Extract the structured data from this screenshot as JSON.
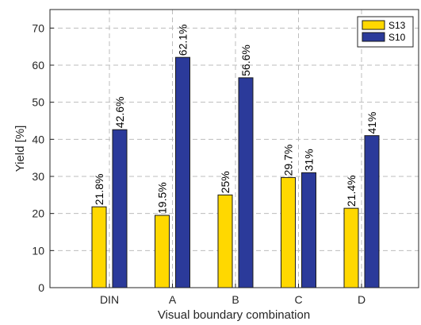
{
  "chart_data": {
    "type": "bar",
    "categories": [
      "DIN",
      "A",
      "B",
      "C",
      "D"
    ],
    "series": [
      {
        "name": "S13",
        "color": "#FFD800",
        "values": [
          21.8,
          19.5,
          25,
          29.7,
          21.4
        ],
        "labels": [
          "21.8%",
          "19.5%",
          "25%",
          "29.7%",
          "21.4%"
        ]
      },
      {
        "name": "S10",
        "color": "#2B3A9A",
        "values": [
          42.6,
          62.1,
          56.6,
          31,
          41
        ],
        "labels": [
          "42.6%",
          "62.1%",
          "56.6%",
          "31%",
          "41%"
        ]
      }
    ],
    "title": "",
    "xlabel": "Visual boundary combination",
    "ylabel": "Yield [%]",
    "ylim": [
      0,
      75
    ],
    "yticks": [
      0,
      10,
      20,
      30,
      40,
      50,
      60,
      70
    ],
    "grid": true,
    "legend_position": "top-right"
  }
}
